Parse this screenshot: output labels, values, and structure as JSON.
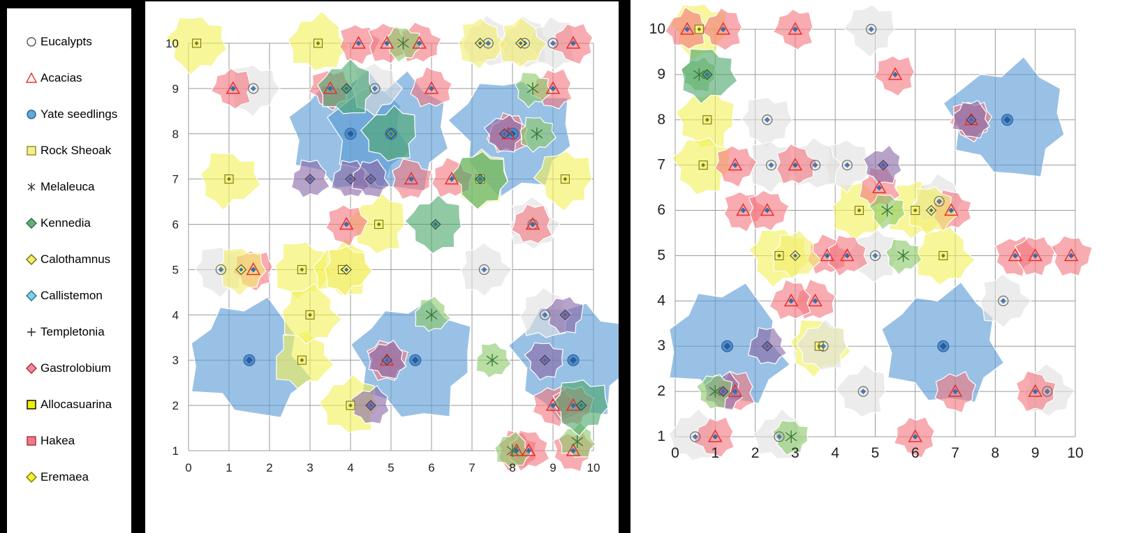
{
  "legend": {
    "items": [
      {
        "label": "Eucalypts",
        "symbol": "ring",
        "fill": "#ffffff",
        "stroke": "#555555"
      },
      {
        "label": "Acacias",
        "symbol": "triangle",
        "fill": "none",
        "stroke": "#e0322f"
      },
      {
        "label": "Yate seedlings",
        "symbol": "circle",
        "fill": "#5ea9dd",
        "stroke": "#2a5f87"
      },
      {
        "label": "Rock Sheoak",
        "symbol": "square",
        "fill": "#f3f08a",
        "stroke": "#8a8a2a"
      },
      {
        "label": "Melaleuca",
        "symbol": "star",
        "fill": "none",
        "stroke": "#333333"
      },
      {
        "label": "Kennedia",
        "symbol": "diamond",
        "fill": "#5db27a",
        "stroke": "#2f6b44"
      },
      {
        "label": "Calothamnus",
        "symbol": "diamond",
        "fill": "#f2ee6e",
        "stroke": "#6b6b10"
      },
      {
        "label": "Callistemon",
        "symbol": "diamond",
        "fill": "#7ed0e8",
        "stroke": "#2a6f8a"
      },
      {
        "label": "Templetonia",
        "symbol": "plus",
        "fill": "none",
        "stroke": "#222222"
      },
      {
        "label": "Gastrolobium",
        "symbol": "diamond",
        "fill": "#f08a9a",
        "stroke": "#a02a3a"
      },
      {
        "label": "Allocasuarina",
        "symbol": "square",
        "fill": "#f0f000",
        "stroke": "#000000"
      },
      {
        "label": "Hakea",
        "symbol": "square",
        "fill": "#f27a86",
        "stroke": "#a52a35"
      },
      {
        "label": "Eremaea",
        "symbol": "diamond",
        "fill": "#f4ee30",
        "stroke": "#7a7400"
      }
    ]
  },
  "chart_data": [
    {
      "type": "scatter",
      "title": "",
      "xlabel": "",
      "ylabel": "",
      "xlim": [
        0,
        10
      ],
      "ylim": [
        1,
        10
      ],
      "grid": true,
      "x_ticks": [
        "0",
        "1",
        "2",
        "3",
        "4",
        "5",
        "6",
        "7",
        "8",
        "9",
        "10"
      ],
      "y_ticks": [
        "1",
        "2",
        "3",
        "4",
        "5",
        "6",
        "7",
        "8",
        "9",
        "10"
      ],
      "series": [
        {
          "name": "Yate seedlings",
          "color": "#5b9bd5",
          "points": [
            [
              1.5,
              3
            ],
            [
              4.0,
              8
            ],
            [
              5.0,
              8
            ],
            [
              5.6,
              3
            ],
            [
              9.5,
              3
            ],
            [
              8.0,
              8
            ]
          ]
        },
        {
          "name": "Rock Sheoak",
          "color": "#f2f05a",
          "points": [
            [
              0.2,
              10
            ],
            [
              1.0,
              7
            ],
            [
              2.8,
              5
            ],
            [
              2.8,
              3
            ],
            [
              3.0,
              4
            ],
            [
              3.2,
              10
            ],
            [
              3.8,
              5
            ],
            [
              4.0,
              2
            ],
            [
              4.7,
              6
            ],
            [
              7.2,
              7
            ],
            [
              9.3,
              7
            ]
          ]
        },
        {
          "name": "Eucalypts",
          "color": "#e0e0e0",
          "points": [
            [
              0.8,
              5
            ],
            [
              1.6,
              9
            ],
            [
              4.6,
              9
            ],
            [
              7.3,
              5
            ],
            [
              8.5,
              6
            ],
            [
              8.8,
              4
            ],
            [
              7.4,
              10
            ],
            [
              8.3,
              10
            ],
            [
              9.0,
              10
            ]
          ]
        },
        {
          "name": "Acacias",
          "color": "#f4787f",
          "points": [
            [
              1.1,
              9
            ],
            [
              1.6,
              5
            ],
            [
              3.5,
              9
            ],
            [
              3.9,
              6
            ],
            [
              4.2,
              10
            ],
            [
              4.9,
              10
            ],
            [
              5.7,
              10
            ],
            [
              6.5,
              7
            ],
            [
              6.0,
              9
            ],
            [
              7.9,
              8
            ],
            [
              8.5,
              6
            ],
            [
              9.0,
              9
            ],
            [
              9.5,
              10
            ],
            [
              9.0,
              2
            ],
            [
              9.5,
              1
            ],
            [
              9.5,
              2
            ],
            [
              4.9,
              3
            ],
            [
              5.5,
              7
            ],
            [
              8.1,
              1
            ],
            [
              8.4,
              1
            ]
          ]
        },
        {
          "name": "Gastrolobium",
          "color": "#8a6aa8",
          "points": [
            [
              3.0,
              7
            ],
            [
              4.0,
              7
            ],
            [
              4.5,
              7
            ],
            [
              4.9,
              3
            ],
            [
              4.5,
              2
            ],
            [
              7.8,
              8
            ],
            [
              9.3,
              4
            ],
            [
              8.8,
              3
            ]
          ]
        },
        {
          "name": "Melaleuca",
          "color": "#8cc96a",
          "points": [
            [
              5.3,
              10
            ],
            [
              8.5,
              9
            ],
            [
              8.6,
              8
            ],
            [
              7.5,
              3
            ],
            [
              6.0,
              4
            ],
            [
              8.0,
              1
            ],
            [
              9.6,
              1.2
            ]
          ]
        },
        {
          "name": "Kennedia",
          "color": "#4ea86e",
          "points": [
            [
              3.9,
              9
            ],
            [
              5.0,
              8
            ],
            [
              6.1,
              6
            ],
            [
              7.2,
              7
            ],
            [
              9.7,
              2
            ]
          ]
        },
        {
          "name": "Calothamnus",
          "color": "#f2ee6e",
          "points": [
            [
              1.3,
              5
            ],
            [
              3.9,
              5
            ],
            [
              7.2,
              10
            ],
            [
              8.2,
              10
            ]
          ]
        }
      ]
    },
    {
      "type": "scatter",
      "title": "",
      "xlabel": "",
      "ylabel": "",
      "xlim": [
        0,
        10
      ],
      "ylim": [
        1,
        10
      ],
      "grid": true,
      "x_ticks": [
        "0",
        "1",
        "2",
        "3",
        "4",
        "5",
        "6",
        "7",
        "8",
        "9",
        "10"
      ],
      "y_ticks": [
        "1",
        "2",
        "3",
        "4",
        "5",
        "6",
        "7",
        "8",
        "9",
        "10"
      ],
      "series": [
        {
          "name": "Yate seedlings",
          "color": "#5b9bd5",
          "points": [
            [
              1.3,
              3
            ],
            [
              6.7,
              3
            ],
            [
              8.3,
              8
            ]
          ]
        },
        {
          "name": "Rock Sheoak",
          "color": "#f2f05a",
          "points": [
            [
              0.8,
              8
            ],
            [
              0.7,
              7
            ],
            [
              0.6,
              10
            ],
            [
              2.6,
              5
            ],
            [
              3.6,
              3
            ],
            [
              4.6,
              6
            ],
            [
              6.0,
              6
            ],
            [
              6.7,
              5
            ]
          ]
        },
        {
          "name": "Eucalypts",
          "color": "#e0e0e0",
          "points": [
            [
              0.5,
              1
            ],
            [
              2.6,
              1
            ],
            [
              3.7,
              3
            ],
            [
              4.7,
              2
            ],
            [
              5.0,
              5
            ],
            [
              4.9,
              10
            ],
            [
              2.3,
              8
            ],
            [
              2.4,
              7
            ],
            [
              4.3,
              7
            ],
            [
              8.2,
              4
            ],
            [
              9.3,
              2
            ],
            [
              3.5,
              7
            ],
            [
              6.6,
              6.2
            ]
          ]
        },
        {
          "name": "Acacias",
          "color": "#f4787f",
          "points": [
            [
              0.3,
              10
            ],
            [
              1.2,
              10
            ],
            [
              3.0,
              10
            ],
            [
              5.5,
              9
            ],
            [
              7.4,
              8
            ],
            [
              1.5,
              7
            ],
            [
              1.7,
              6
            ],
            [
              2.3,
              6
            ],
            [
              3.0,
              7
            ],
            [
              3.8,
              5
            ],
            [
              3.5,
              4
            ],
            [
              2.9,
              4
            ],
            [
              1.5,
              2
            ],
            [
              1.0,
              1
            ],
            [
              6.0,
              1
            ],
            [
              7.0,
              2
            ],
            [
              8.5,
              5
            ],
            [
              9.0,
              5
            ],
            [
              9.9,
              5
            ],
            [
              9.0,
              2
            ],
            [
              6.9,
              6
            ],
            [
              4.3,
              5
            ],
            [
              5.1,
              6.5
            ]
          ]
        },
        {
          "name": "Gastrolobium",
          "color": "#8a6aa8",
          "points": [
            [
              2.3,
              3
            ],
            [
              7.4,
              8
            ],
            [
              1.2,
              2
            ],
            [
              5.2,
              7
            ]
          ]
        },
        {
          "name": "Melaleuca",
          "color": "#8cc96a",
          "points": [
            [
              0.6,
              9
            ],
            [
              1.0,
              2
            ],
            [
              2.9,
              1
            ],
            [
              5.3,
              6
            ],
            [
              5.7,
              5
            ]
          ]
        },
        {
          "name": "Kennedia",
          "color": "#4ea86e",
          "points": [
            [
              0.8,
              9
            ]
          ]
        },
        {
          "name": "Calothamnus",
          "color": "#f2ee6e",
          "points": [
            [
              6.4,
              6
            ],
            [
              3.0,
              5
            ]
          ]
        }
      ]
    }
  ]
}
